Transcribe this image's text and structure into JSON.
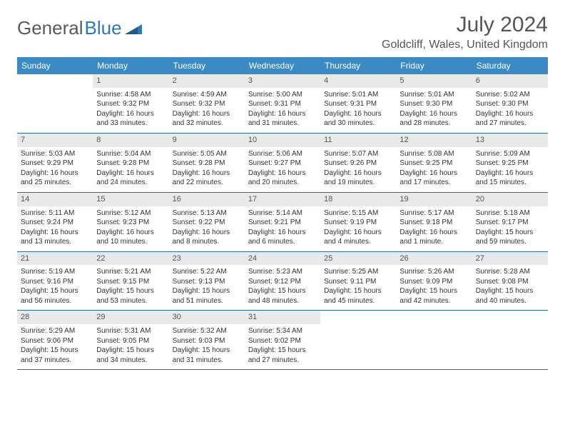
{
  "logo": {
    "part1": "General",
    "part2": "Blue"
  },
  "title": "July 2024",
  "location": "Goldcliff, Wales, United Kingdom",
  "colors": {
    "header_bg": "#3a8ac5",
    "week_border": "#2a6fa5",
    "daynum_bg": "#e9e9e9",
    "text": "#333333",
    "title_text": "#555555"
  },
  "weekdays": [
    "Sunday",
    "Monday",
    "Tuesday",
    "Wednesday",
    "Thursday",
    "Friday",
    "Saturday"
  ],
  "weeks": [
    [
      null,
      {
        "n": "1",
        "sunrise": "Sunrise: 4:58 AM",
        "sunset": "Sunset: 9:32 PM",
        "d1": "Daylight: 16 hours",
        "d2": "and 33 minutes."
      },
      {
        "n": "2",
        "sunrise": "Sunrise: 4:59 AM",
        "sunset": "Sunset: 9:32 PM",
        "d1": "Daylight: 16 hours",
        "d2": "and 32 minutes."
      },
      {
        "n": "3",
        "sunrise": "Sunrise: 5:00 AM",
        "sunset": "Sunset: 9:31 PM",
        "d1": "Daylight: 16 hours",
        "d2": "and 31 minutes."
      },
      {
        "n": "4",
        "sunrise": "Sunrise: 5:01 AM",
        "sunset": "Sunset: 9:31 PM",
        "d1": "Daylight: 16 hours",
        "d2": "and 30 minutes."
      },
      {
        "n": "5",
        "sunrise": "Sunrise: 5:01 AM",
        "sunset": "Sunset: 9:30 PM",
        "d1": "Daylight: 16 hours",
        "d2": "and 28 minutes."
      },
      {
        "n": "6",
        "sunrise": "Sunrise: 5:02 AM",
        "sunset": "Sunset: 9:30 PM",
        "d1": "Daylight: 16 hours",
        "d2": "and 27 minutes."
      }
    ],
    [
      {
        "n": "7",
        "sunrise": "Sunrise: 5:03 AM",
        "sunset": "Sunset: 9:29 PM",
        "d1": "Daylight: 16 hours",
        "d2": "and 25 minutes."
      },
      {
        "n": "8",
        "sunrise": "Sunrise: 5:04 AM",
        "sunset": "Sunset: 9:28 PM",
        "d1": "Daylight: 16 hours",
        "d2": "and 24 minutes."
      },
      {
        "n": "9",
        "sunrise": "Sunrise: 5:05 AM",
        "sunset": "Sunset: 9:28 PM",
        "d1": "Daylight: 16 hours",
        "d2": "and 22 minutes."
      },
      {
        "n": "10",
        "sunrise": "Sunrise: 5:06 AM",
        "sunset": "Sunset: 9:27 PM",
        "d1": "Daylight: 16 hours",
        "d2": "and 20 minutes."
      },
      {
        "n": "11",
        "sunrise": "Sunrise: 5:07 AM",
        "sunset": "Sunset: 9:26 PM",
        "d1": "Daylight: 16 hours",
        "d2": "and 19 minutes."
      },
      {
        "n": "12",
        "sunrise": "Sunrise: 5:08 AM",
        "sunset": "Sunset: 9:25 PM",
        "d1": "Daylight: 16 hours",
        "d2": "and 17 minutes."
      },
      {
        "n": "13",
        "sunrise": "Sunrise: 5:09 AM",
        "sunset": "Sunset: 9:25 PM",
        "d1": "Daylight: 16 hours",
        "d2": "and 15 minutes."
      }
    ],
    [
      {
        "n": "14",
        "sunrise": "Sunrise: 5:11 AM",
        "sunset": "Sunset: 9:24 PM",
        "d1": "Daylight: 16 hours",
        "d2": "and 13 minutes."
      },
      {
        "n": "15",
        "sunrise": "Sunrise: 5:12 AM",
        "sunset": "Sunset: 9:23 PM",
        "d1": "Daylight: 16 hours",
        "d2": "and 10 minutes."
      },
      {
        "n": "16",
        "sunrise": "Sunrise: 5:13 AM",
        "sunset": "Sunset: 9:22 PM",
        "d1": "Daylight: 16 hours",
        "d2": "and 8 minutes."
      },
      {
        "n": "17",
        "sunrise": "Sunrise: 5:14 AM",
        "sunset": "Sunset: 9:21 PM",
        "d1": "Daylight: 16 hours",
        "d2": "and 6 minutes."
      },
      {
        "n": "18",
        "sunrise": "Sunrise: 5:15 AM",
        "sunset": "Sunset: 9:19 PM",
        "d1": "Daylight: 16 hours",
        "d2": "and 4 minutes."
      },
      {
        "n": "19",
        "sunrise": "Sunrise: 5:17 AM",
        "sunset": "Sunset: 9:18 PM",
        "d1": "Daylight: 16 hours",
        "d2": "and 1 minute."
      },
      {
        "n": "20",
        "sunrise": "Sunrise: 5:18 AM",
        "sunset": "Sunset: 9:17 PM",
        "d1": "Daylight: 15 hours",
        "d2": "and 59 minutes."
      }
    ],
    [
      {
        "n": "21",
        "sunrise": "Sunrise: 5:19 AM",
        "sunset": "Sunset: 9:16 PM",
        "d1": "Daylight: 15 hours",
        "d2": "and 56 minutes."
      },
      {
        "n": "22",
        "sunrise": "Sunrise: 5:21 AM",
        "sunset": "Sunset: 9:15 PM",
        "d1": "Daylight: 15 hours",
        "d2": "and 53 minutes."
      },
      {
        "n": "23",
        "sunrise": "Sunrise: 5:22 AM",
        "sunset": "Sunset: 9:13 PM",
        "d1": "Daylight: 15 hours",
        "d2": "and 51 minutes."
      },
      {
        "n": "24",
        "sunrise": "Sunrise: 5:23 AM",
        "sunset": "Sunset: 9:12 PM",
        "d1": "Daylight: 15 hours",
        "d2": "and 48 minutes."
      },
      {
        "n": "25",
        "sunrise": "Sunrise: 5:25 AM",
        "sunset": "Sunset: 9:11 PM",
        "d1": "Daylight: 15 hours",
        "d2": "and 45 minutes."
      },
      {
        "n": "26",
        "sunrise": "Sunrise: 5:26 AM",
        "sunset": "Sunset: 9:09 PM",
        "d1": "Daylight: 15 hours",
        "d2": "and 42 minutes."
      },
      {
        "n": "27",
        "sunrise": "Sunrise: 5:28 AM",
        "sunset": "Sunset: 9:08 PM",
        "d1": "Daylight: 15 hours",
        "d2": "and 40 minutes."
      }
    ],
    [
      {
        "n": "28",
        "sunrise": "Sunrise: 5:29 AM",
        "sunset": "Sunset: 9:06 PM",
        "d1": "Daylight: 15 hours",
        "d2": "and 37 minutes."
      },
      {
        "n": "29",
        "sunrise": "Sunrise: 5:31 AM",
        "sunset": "Sunset: 9:05 PM",
        "d1": "Daylight: 15 hours",
        "d2": "and 34 minutes."
      },
      {
        "n": "30",
        "sunrise": "Sunrise: 5:32 AM",
        "sunset": "Sunset: 9:03 PM",
        "d1": "Daylight: 15 hours",
        "d2": "and 31 minutes."
      },
      {
        "n": "31",
        "sunrise": "Sunrise: 5:34 AM",
        "sunset": "Sunset: 9:02 PM",
        "d1": "Daylight: 15 hours",
        "d2": "and 27 minutes."
      },
      null,
      null,
      null
    ]
  ]
}
